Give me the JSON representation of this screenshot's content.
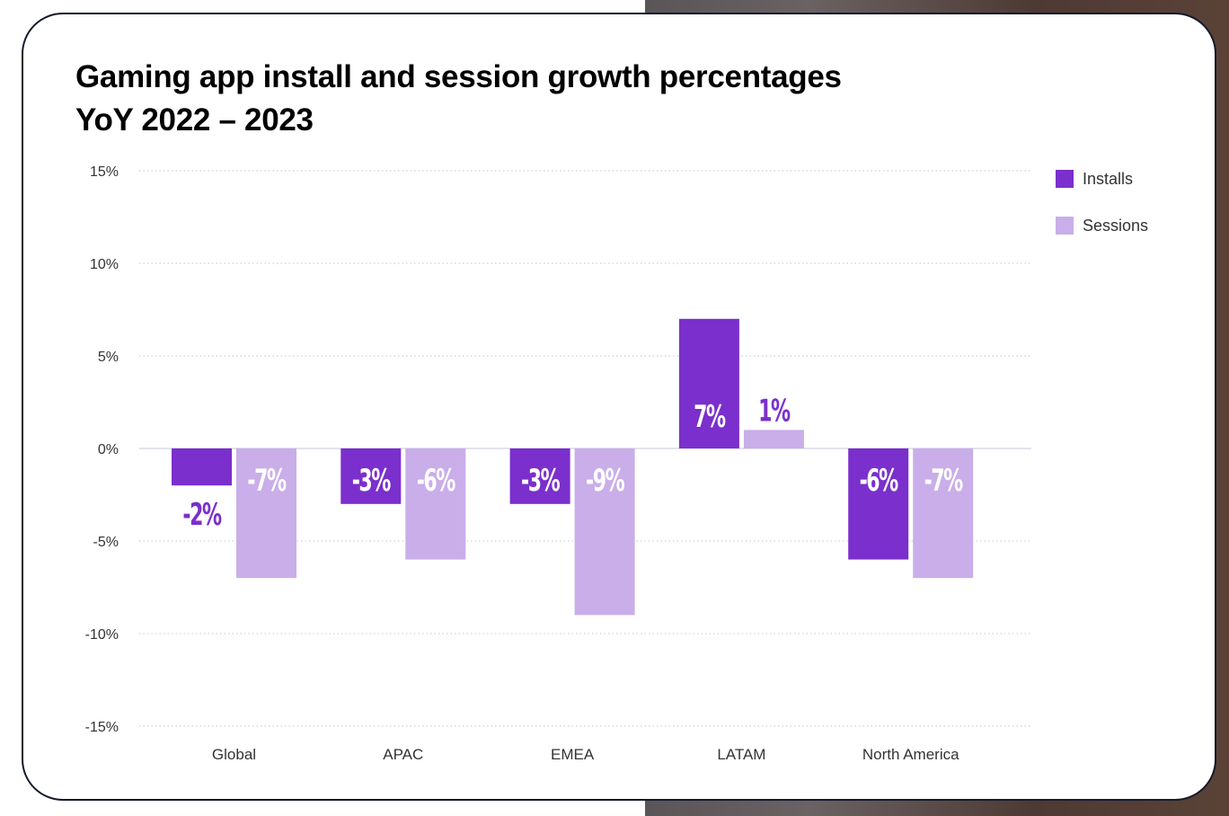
{
  "chart_data": {
    "type": "bar",
    "title": "Gaming app install and session growth percentages",
    "subtitle": "YoY 2022 – 2023",
    "categories": [
      "Global",
      "APAC",
      "EMEA",
      "LATAM",
      "North America"
    ],
    "series": [
      {
        "name": "Installs",
        "color": "#7b2fcc",
        "values": [
          -2,
          -3,
          -3,
          7,
          -6
        ],
        "labels": [
          "-2%",
          "-3%",
          "-3%",
          "7%",
          "-6%"
        ]
      },
      {
        "name": "Sessions",
        "color": "#c9aee9",
        "values": [
          -7,
          -6,
          -9,
          1,
          -7
        ],
        "labels": [
          "-7%",
          "-6%",
          "-9%",
          "1%",
          "-7%"
        ]
      }
    ],
    "ylim": [
      -15,
      15
    ],
    "yticks": [
      15,
      10,
      5,
      0,
      -5,
      -10,
      -15
    ],
    "ytick_labels": [
      "15%",
      "10%",
      "5%",
      "0%",
      "-5%",
      "-10%",
      "-15%"
    ],
    "grid": true,
    "legend": "right",
    "xlabel": "",
    "ylabel": ""
  }
}
